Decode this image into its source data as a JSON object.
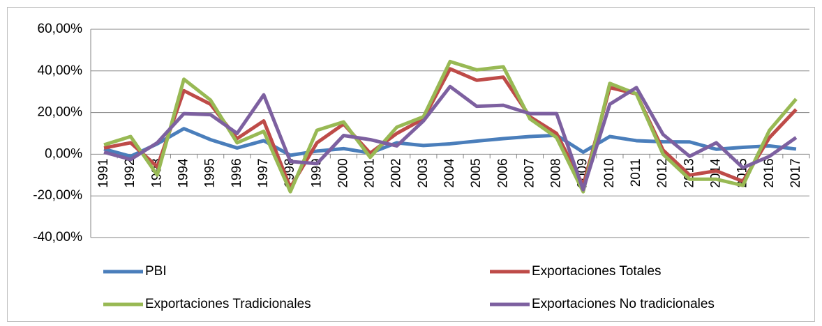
{
  "chart_data": {
    "type": "line",
    "categories": [
      "1991",
      "1992",
      "1993",
      "1994",
      "1995",
      "1996",
      "1997",
      "1998",
      "1999",
      "2000",
      "2001",
      "2002",
      "2003",
      "2004",
      "2005",
      "2006",
      "2007",
      "2008",
      "2009",
      "2010",
      "2011",
      "2012",
      "2013",
      "2014",
      "2015",
      "2016",
      "2017"
    ],
    "series": [
      {
        "name": "PBI",
        "color": "#4a7ebb",
        "values": [
          2.5,
          -1,
          5,
          12.3,
          7,
          3,
          6.5,
          -0.5,
          1.5,
          2.7,
          0.6,
          5.5,
          4.2,
          5,
          6.3,
          7.5,
          8.5,
          9.1,
          1,
          8.5,
          6.5,
          6,
          5.9,
          2.4,
          3.3,
          4,
          2.5
        ]
      },
      {
        "name": "Exportaciones Totales",
        "color": "#be4b48",
        "values": [
          3,
          5.5,
          -6,
          30.5,
          24,
          7.5,
          16,
          -16,
          5.5,
          14.5,
          0.5,
          10,
          17,
          41,
          35.5,
          37,
          18,
          10,
          -15,
          32,
          29,
          2,
          -10,
          -8,
          -13,
          8,
          21.5
        ]
      },
      {
        "name": "Exportaciones Tradicionales",
        "color": "#98b954",
        "values": [
          4.5,
          8.5,
          -10,
          36,
          26,
          5.5,
          11,
          -18,
          11.5,
          15.5,
          -1.5,
          13,
          18,
          44.5,
          40.5,
          42,
          17,
          8,
          -18,
          34,
          29,
          0,
          -12,
          -12,
          -15,
          11.5,
          26.5
        ]
      },
      {
        "name": "Exportaciones No tradicionales",
        "color": "#7d60a0",
        "values": [
          1,
          -2.5,
          5.5,
          19.5,
          19,
          10,
          28.5,
          -3.5,
          -4.5,
          9,
          7,
          4,
          16,
          32.5,
          23,
          23.5,
          19.5,
          19.5,
          -17,
          24,
          32,
          9.5,
          -1,
          5.5,
          -6.5,
          -1,
          8
        ]
      }
    ],
    "ylim": [
      -40,
      60
    ],
    "yticks": [
      {
        "value": -40,
        "label": "-40,00%"
      },
      {
        "value": -20,
        "label": "-20,00%"
      },
      {
        "value": 0,
        "label": "0,00%"
      },
      {
        "value": 20,
        "label": "20,00%"
      },
      {
        "value": 40,
        "label": "40,00%"
      },
      {
        "value": 60,
        "label": "60,00%"
      }
    ],
    "grid": true,
    "legend": "bottom"
  }
}
